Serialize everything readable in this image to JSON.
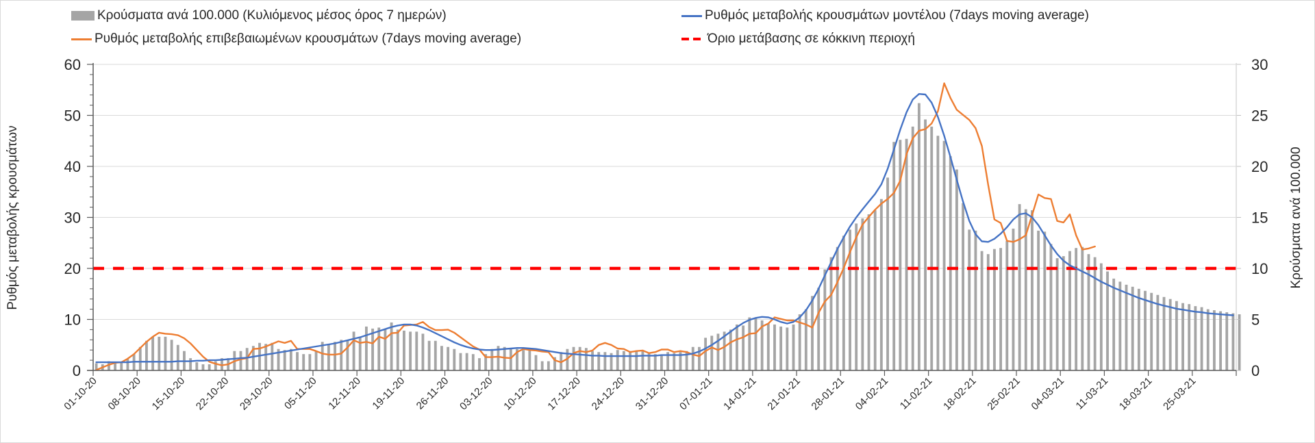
{
  "chart_data": {
    "type": "bar+line",
    "title": "",
    "legend": [
      {
        "key": "bars",
        "label": "Κρούσματα ανά 100.000 (Κυλιόμενος μέσος όρος 7 ημερών)",
        "color": "#a5a5a5",
        "kind": "bar"
      },
      {
        "key": "model",
        "label": "Ρυθμός μεταβολής κρουσμάτων μοντέλου (7days moving average)",
        "color": "#4472c4",
        "kind": "line"
      },
      {
        "key": "confirmed",
        "label": "Ρυθμός μεταβολής επιβεβαιωμένων κρουσμάτων (7days moving average)",
        "color": "#ed7d31",
        "kind": "line"
      },
      {
        "key": "threshold",
        "label": "Όριο μετάβασης σε κόκκινη περιοχή",
        "color": "#ff0000",
        "kind": "dashed"
      }
    ],
    "legend_position": "top",
    "ylabel_left": "Ρυθμός μεταβολής κρουσμάτων",
    "ylabel_right": "Κρούσματα ανά 100.000",
    "ylim_left": [
      0,
      60
    ],
    "ylim_right": [
      0,
      30
    ],
    "yticks_left": [
      "0",
      "10",
      "20",
      "30",
      "40",
      "50",
      "60"
    ],
    "yticks_right": [
      "0",
      "5",
      "10",
      "15",
      "20",
      "25",
      "30"
    ],
    "grid": true,
    "start_date": "01-10-20",
    "n_days": 182,
    "x_tick_labels": [
      "01-10-20",
      "08-10-20",
      "15-10-20",
      "22-10-20",
      "29-10-20",
      "05-11-20",
      "12-11-20",
      "19-11-20",
      "26-11-20",
      "03-12-20",
      "10-12-20",
      "17-12-20",
      "24-12-20",
      "31-12-20",
      "07-01-21",
      "14-01-21",
      "21-01-21",
      "28-01-21",
      "04-02-21",
      "11-02-21",
      "18-02-21",
      "25-02-21",
      "04-03-21",
      "11-03-21",
      "18-03-21",
      "25-03-21"
    ],
    "threshold_left": 20,
    "series": [
      {
        "name": "Κρούσματα ανά 100.000 (Κυλιόμενος μέσος όρος 7 ημερών)",
        "axis": "right",
        "type": "bar",
        "values": [
          0.7,
          0.6,
          0.9,
          0.8,
          0.8,
          1.1,
          1.6,
          2.3,
          2.9,
          3.3,
          3.3,
          3.3,
          3.0,
          2.5,
          1.9,
          1.2,
          0.8,
          0.6,
          0.6,
          0.9,
          1.2,
          1.2,
          1.9,
          1.9,
          2.2,
          2.4,
          2.7,
          2.6,
          2.7,
          2.1,
          2.0,
          2.1,
          1.8,
          1.6,
          1.6,
          1.9,
          2.8,
          2.6,
          2.8,
          3.0,
          3.0,
          3.8,
          3.3,
          4.3,
          4.1,
          4.2,
          4.1,
          4.7,
          4.0,
          3.9,
          3.8,
          3.8,
          3.6,
          2.9,
          2.9,
          2.4,
          2.3,
          2.1,
          1.7,
          1.7,
          1.6,
          1.2,
          1.6,
          2.1,
          2.4,
          2.3,
          2.2,
          2.1,
          2.0,
          2.0,
          1.5,
          0.9,
          0.9,
          1.3,
          1.8,
          2.1,
          2.3,
          2.3,
          2.2,
          1.9,
          1.8,
          1.8,
          1.7,
          2.0,
          1.9,
          1.9,
          1.9,
          1.9,
          1.7,
          1.6,
          1.5,
          1.8,
          1.7,
          1.8,
          1.9,
          2.3,
          2.3,
          3.2,
          3.4,
          3.6,
          3.8,
          4.0,
          4.5,
          4.4,
          5.2,
          5.1,
          4.9,
          4.6,
          4.5,
          4.3,
          4.2,
          4.5,
          5.5,
          6.0,
          7.3,
          8.1,
          9.9,
          11.1,
          12.1,
          13.2,
          13.8,
          14.4,
          14.9,
          15.3,
          15.7,
          16.8,
          18.9,
          22.4,
          22.6,
          22.7,
          23.9,
          26.2,
          24.6,
          23.9,
          23.0,
          22.5,
          21.0,
          19.7,
          16.4,
          13.8,
          13.7,
          11.7,
          11.4,
          11.9,
          12.0,
          12.7,
          13.9,
          16.3,
          15.8,
          15.7,
          13.7,
          13.6,
          12.4,
          11.0,
          11.2,
          11.7,
          12.0,
          12.1,
          11.4,
          11.1,
          10.5,
          9.7,
          9.0,
          8.7,
          8.4,
          8.2,
          8.0,
          7.8,
          7.6,
          7.4,
          7.2,
          7.0,
          6.8,
          6.6,
          6.5,
          6.3,
          6.2,
          6.0,
          5.9,
          5.8,
          5.7,
          5.6,
          5.5
        ]
      },
      {
        "name": "Ρυθμός μεταβολής κρουσμάτων μοντέλου (7days moving average)",
        "axis": "left",
        "type": "line",
        "values": [
          1.6,
          1.6,
          1.6,
          1.6,
          1.6,
          1.6,
          1.7,
          1.7,
          1.7,
          1.7,
          1.7,
          1.7,
          1.7,
          1.8,
          1.8,
          1.8,
          1.9,
          1.9,
          2.0,
          2.0,
          2.1,
          2.2,
          2.3,
          2.4,
          2.5,
          2.7,
          2.9,
          3.1,
          3.3,
          3.5,
          3.7,
          3.9,
          4.1,
          4.3,
          4.5,
          4.7,
          4.9,
          5.1,
          5.3,
          5.6,
          5.9,
          6.2,
          6.5,
          6.9,
          7.3,
          7.7,
          8.1,
          8.5,
          8.8,
          9.0,
          9.0,
          8.8,
          8.4,
          7.9,
          7.3,
          6.7,
          6.1,
          5.5,
          5.0,
          4.6,
          4.3,
          4.1,
          4.0,
          4.0,
          4.1,
          4.2,
          4.3,
          4.4,
          4.4,
          4.3,
          4.2,
          4.0,
          3.8,
          3.6,
          3.4,
          3.3,
          3.2,
          3.1,
          3.0,
          2.9,
          2.9,
          2.8,
          2.8,
          2.8,
          2.8,
          2.8,
          2.8,
          2.9,
          2.9,
          2.9,
          3.0,
          3.0,
          3.0,
          3.0,
          3.1,
          3.3,
          3.7,
          4.3,
          5.0,
          5.8,
          6.7,
          7.6,
          8.5,
          9.3,
          9.9,
          10.3,
          10.5,
          10.4,
          10.0,
          9.5,
          9.2,
          9.5,
          10.4,
          11.8,
          13.7,
          16.0,
          18.6,
          21.2,
          23.8,
          26.1,
          28.2,
          30.0,
          31.6,
          33.1,
          34.6,
          36.5,
          39.5,
          43.3,
          47.2,
          50.6,
          53.1,
          54.2,
          54.1,
          52.5,
          49.7,
          46.0,
          41.8,
          37.4,
          33.1,
          29.3,
          26.7,
          25.3,
          25.2,
          25.8,
          26.8,
          28.1,
          29.6,
          30.6,
          30.8,
          30.0,
          28.5,
          26.5,
          24.5,
          22.8,
          21.5,
          20.6,
          20.0,
          19.4,
          18.8,
          18.1,
          17.4,
          16.8,
          16.2,
          15.7,
          15.2,
          14.7,
          14.2,
          13.8,
          13.4,
          13.0,
          12.7,
          12.4,
          12.1,
          11.9,
          11.7,
          11.5,
          11.4,
          11.2,
          11.1,
          11.0,
          10.9,
          10.8
        ]
      },
      {
        "name": "Ρυθμός μεταβολής επιβεβαιωμένων κρουσμάτων (7days moving average)",
        "axis": "left",
        "type": "line",
        "values": [
          0.1,
          0.6,
          1.1,
          1.5,
          1.6,
          2.3,
          3.2,
          4.4,
          5.6,
          6.6,
          7.4,
          7.2,
          7.1,
          6.9,
          6.3,
          5.3,
          4.0,
          2.7,
          1.7,
          1.3,
          1.0,
          1.2,
          1.8,
          2.2,
          2.4,
          4.2,
          4.3,
          4.7,
          5.2,
          5.7,
          5.4,
          5.8,
          4.2,
          4.2,
          4.2,
          3.8,
          3.3,
          3.1,
          3.1,
          3.3,
          4.5,
          5.9,
          5.4,
          5.6,
          5.3,
          6.6,
          6.2,
          7.3,
          7.4,
          8.8,
          8.9,
          9.0,
          9.5,
          8.5,
          7.9,
          7.9,
          8.0,
          7.4,
          6.5,
          5.6,
          4.7,
          4.1,
          2.6,
          2.6,
          2.7,
          2.5,
          2.4,
          3.6,
          4.2,
          4.0,
          3.9,
          3.7,
          3.6,
          2.0,
          1.6,
          2.3,
          3.4,
          3.8,
          3.6,
          3.9,
          5.0,
          5.4,
          5.0,
          4.3,
          4.2,
          3.6,
          3.8,
          3.9,
          3.4,
          3.6,
          4.1,
          4.1,
          3.6,
          3.8,
          3.6,
          3.1,
          2.8,
          3.8,
          4.5,
          4.0,
          4.6,
          5.5,
          6.1,
          6.5,
          7.2,
          7.3,
          8.6,
          9.2,
          10.4,
          10.1,
          9.8,
          9.8,
          9.4,
          9.0,
          8.4,
          11.3,
          13.5,
          14.8,
          17.3,
          20.1,
          23.2,
          26.1,
          28.6,
          30.1,
          31.5,
          32.7,
          33.6,
          34.8,
          37.2,
          42.4,
          45.5,
          47.0,
          47.3,
          48.4,
          50.8,
          56.3,
          53.4,
          51.1,
          50.1,
          49.1,
          47.5,
          44.0,
          36.4,
          29.6,
          28.9,
          25.4,
          25.2,
          25.7,
          26.5,
          30.5,
          34.5,
          33.8,
          33.6,
          29.3,
          29.0,
          30.6,
          26.5,
          23.7,
          23.9,
          24.3
        ]
      },
      {
        "name": "Όριο μετάβασης σε κόκκινη περιοχή",
        "axis": "left",
        "type": "hline",
        "value": 20
      }
    ]
  }
}
